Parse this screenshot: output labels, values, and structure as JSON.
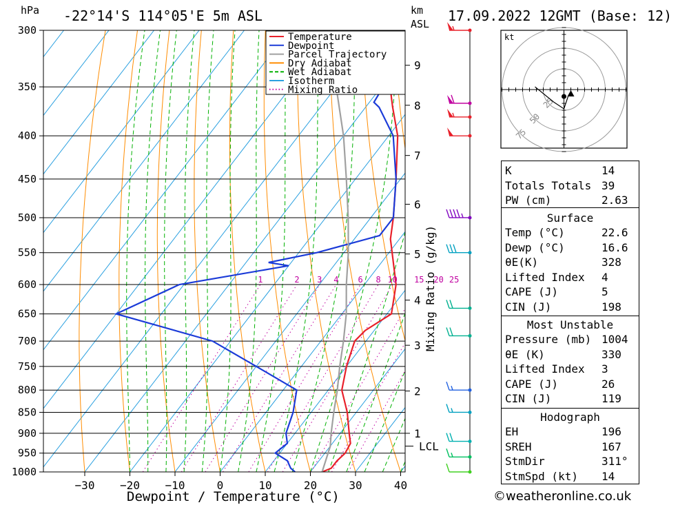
{
  "header": {
    "left_unit": "hPa",
    "location": "-22°14'S 114°05'E 5m ASL",
    "right_unit_km": "km",
    "right_unit_asl": "ASL",
    "datetime": "17.09.2022 12GMT (Base: 12)"
  },
  "axes": {
    "xlabel": "Dewpoint / Temperature (°C)",
    "x_ticks": [
      -30,
      -20,
      -10,
      0,
      10,
      20,
      30,
      40
    ],
    "p_levels": [
      300,
      350,
      400,
      450,
      500,
      550,
      600,
      650,
      700,
      750,
      800,
      850,
      900,
      950,
      1000
    ],
    "km_ticks": [
      {
        "label": "9",
        "p": 330
      },
      {
        "label": "8",
        "p": 368
      },
      {
        "label": "7",
        "p": 422
      },
      {
        "label": "6",
        "p": 482
      },
      {
        "label": "5",
        "p": 552
      },
      {
        "label": "4",
        "p": 626
      },
      {
        "label": "3",
        "p": 708
      },
      {
        "label": "2",
        "p": 802
      },
      {
        "label": "1",
        "p": 900
      }
    ],
    "lcl_label": "LCL",
    "lcl_p": 932,
    "mixing_ratio_label": "Mixing Ratio (g/kg)",
    "mixing_ratio_values": [
      "1",
      "2",
      "3",
      "4",
      "6",
      "8",
      "10",
      "15",
      "20",
      "25"
    ]
  },
  "legend": [
    {
      "name": "Temperature",
      "color": "#e8202a",
      "style": "solid"
    },
    {
      "name": "Dewpoint",
      "color": "#1b3bd8",
      "style": "solid"
    },
    {
      "name": "Parcel Trajectory",
      "color": "#a0a0a0",
      "style": "solid"
    },
    {
      "name": "Dry Adiabat",
      "color": "#ff8c00",
      "style": "solid"
    },
    {
      "name": "Wet Adiabat",
      "color": "#00b000",
      "style": "dashed"
    },
    {
      "name": "Isotherm",
      "color": "#2aa0e0",
      "style": "solid"
    },
    {
      "name": "Mixing Ratio",
      "color": "#c000a0",
      "style": "dotted"
    }
  ],
  "chart_data": {
    "type": "line",
    "title": "-22°14'S 114°05'E 5m ASL",
    "xlabel": "Dewpoint / Temperature (°C)",
    "ylabel": "hPa",
    "xlim": [
      -40,
      40
    ],
    "ylim": [
      1000,
      300
    ],
    "y_scale": "log",
    "skew": true,
    "series": [
      {
        "name": "Temperature",
        "color": "#e8202a",
        "points": [
          [
            1000,
            22.6
          ],
          [
            990,
            24
          ],
          [
            970,
            24
          ],
          [
            950,
            24.5
          ],
          [
            925,
            24
          ],
          [
            900,
            22
          ],
          [
            850,
            18
          ],
          [
            800,
            13
          ],
          [
            750,
            10
          ],
          [
            700,
            7.5
          ],
          [
            680,
            8
          ],
          [
            650,
            11
          ],
          [
            600,
            7
          ],
          [
            560,
            2
          ],
          [
            530,
            -2
          ],
          [
            500,
            -5
          ],
          [
            450,
            -11
          ],
          [
            400,
            -18
          ],
          [
            370,
            -24
          ],
          [
            360,
            -26
          ],
          [
            340,
            -30
          ],
          [
            300,
            -39
          ]
        ]
      },
      {
        "name": "Dewpoint",
        "color": "#1b3bd8",
        "points": [
          [
            1000,
            16.6
          ],
          [
            990,
            15
          ],
          [
            970,
            13
          ],
          [
            950,
            9
          ],
          [
            925,
            10
          ],
          [
            900,
            8
          ],
          [
            850,
            6
          ],
          [
            800,
            3
          ],
          [
            750,
            -10
          ],
          [
            700,
            -24
          ],
          [
            650,
            -50
          ],
          [
            600,
            -41
          ],
          [
            570,
            -20
          ],
          [
            565,
            -25
          ],
          [
            550,
            -16
          ],
          [
            525,
            -5
          ],
          [
            500,
            -5
          ],
          [
            450,
            -11
          ],
          [
            400,
            -19
          ],
          [
            370,
            -27
          ],
          [
            365,
            -29
          ],
          [
            340,
            -30
          ],
          [
            320,
            -33
          ],
          [
            300,
            -43
          ]
        ]
      },
      {
        "name": "Parcel Trajectory",
        "color": "#a0a0a0",
        "points": [
          [
            1000,
            22.6
          ],
          [
            932,
            20
          ],
          [
            900,
            18
          ],
          [
            850,
            15
          ],
          [
            800,
            12
          ],
          [
            750,
            8.5
          ],
          [
            700,
            5
          ],
          [
            650,
            1
          ],
          [
            600,
            -4
          ],
          [
            550,
            -9
          ],
          [
            500,
            -15
          ],
          [
            450,
            -22
          ],
          [
            400,
            -30
          ],
          [
            350,
            -40
          ],
          [
            300,
            -50
          ]
        ]
      }
    ],
    "wind_barbs": [
      {
        "p": 300,
        "color": "#e8202a",
        "speed_kt": 55
      },
      {
        "p": 366,
        "color": "#c000a0",
        "speed_kt": 60
      },
      {
        "p": 380,
        "color": "#e8202a",
        "speed_kt": 55
      },
      {
        "p": 400,
        "color": "#e8202a",
        "speed_kt": 50
      },
      {
        "p": 500,
        "color": "#8000c0",
        "speed_kt": 45
      },
      {
        "p": 550,
        "color": "#00a0c0",
        "speed_kt": 30
      },
      {
        "p": 640,
        "color": "#00b090",
        "speed_kt": 20
      },
      {
        "p": 690,
        "color": "#00b090",
        "speed_kt": 20
      },
      {
        "p": 800,
        "color": "#2060e0",
        "speed_kt": 15
      },
      {
        "p": 850,
        "color": "#00a0c0",
        "speed_kt": 15
      },
      {
        "p": 920,
        "color": "#00b0b0",
        "speed_kt": 20
      },
      {
        "p": 960,
        "color": "#00c060",
        "speed_kt": 15
      },
      {
        "p": 1000,
        "color": "#40d020",
        "speed_kt": 10
      }
    ]
  },
  "hodograph": {
    "unit": "kt",
    "ring_labels": [
      "25",
      "50",
      "75"
    ]
  },
  "indices": {
    "general": [
      {
        "label": "K",
        "value": "14"
      },
      {
        "label": "Totals Totals",
        "value": "39"
      },
      {
        "label": "PW (cm)",
        "value": "2.63"
      }
    ],
    "surface_title": "Surface",
    "surface": [
      {
        "label": "Temp (°C)",
        "value": "22.6"
      },
      {
        "label": "Dewp (°C)",
        "value": "16.6"
      },
      {
        "label": "θE(K)",
        "value": "328"
      },
      {
        "label": "Lifted Index",
        "value": "4"
      },
      {
        "label": "CAPE (J)",
        "value": "5"
      },
      {
        "label": "CIN (J)",
        "value": "198"
      }
    ],
    "mu_title": "Most Unstable",
    "most_unstable": [
      {
        "label": "Pressure (mb)",
        "value": "1004"
      },
      {
        "label": "θE (K)",
        "value": "330"
      },
      {
        "label": "Lifted Index",
        "value": "3"
      },
      {
        "label": "CAPE (J)",
        "value": "26"
      },
      {
        "label": "CIN (J)",
        "value": "119"
      }
    ],
    "hodo_title": "Hodograph",
    "hodo": [
      {
        "label": "EH",
        "value": "196"
      },
      {
        "label": "SREH",
        "value": "167"
      },
      {
        "label": "StmDir",
        "value": "311°"
      },
      {
        "label": "StmSpd (kt)",
        "value": "14"
      }
    ]
  },
  "credit": "©weatheronline.co.uk"
}
